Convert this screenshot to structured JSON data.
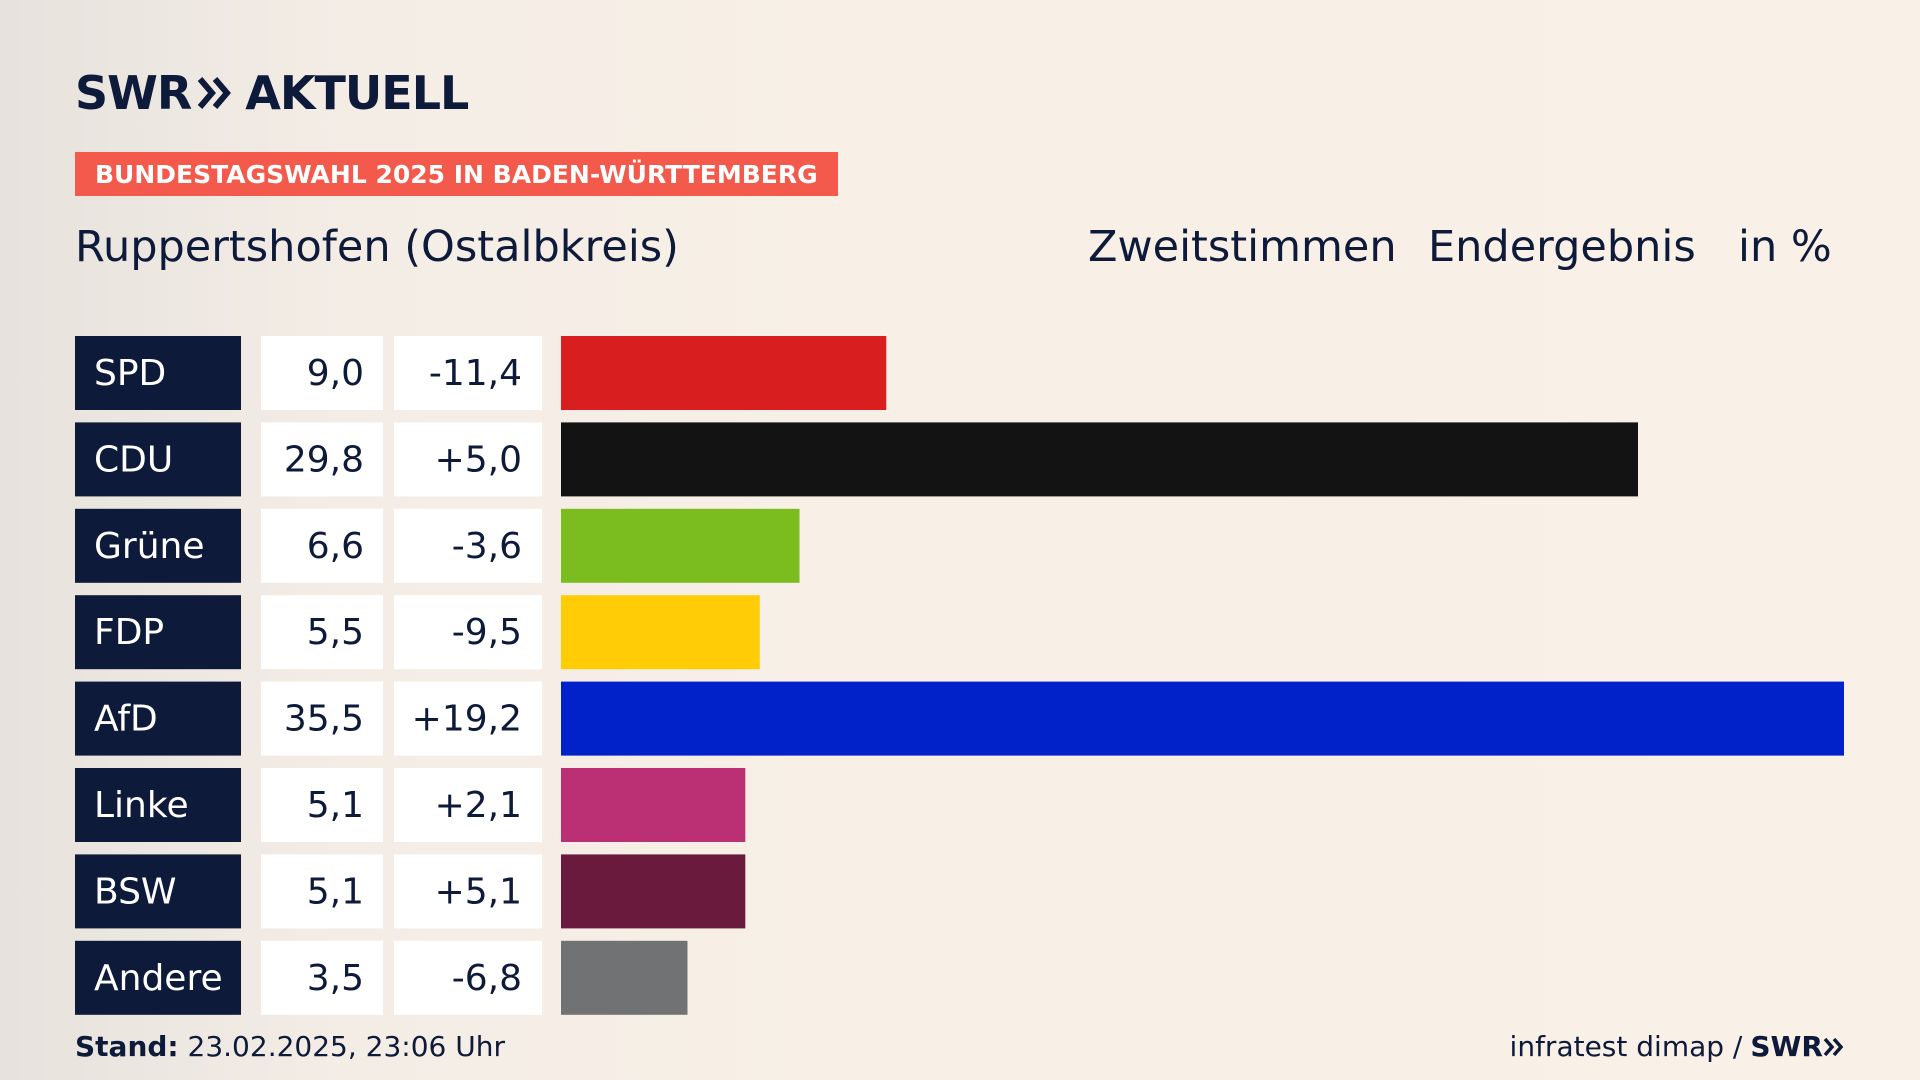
{
  "header": {
    "logo_left": "SWR",
    "logo_right": "AKTUELL",
    "tag": "BUNDESTAGSWAHL 2025 IN BADEN-WÜRTTEMBERG",
    "place": "Ruppertshofen (Ostalbkreis)",
    "vote_type": "Zweitstimmen",
    "result_type": "Endergebnis",
    "unit": "in %"
  },
  "colors": {
    "navy": "#0e1a3a",
    "tag_bg": "#f45a4b"
  },
  "chart_data": {
    "type": "bar",
    "orientation": "horizontal",
    "categories": [
      "SPD",
      "CDU",
      "Grüne",
      "FDP",
      "AfD",
      "Linke",
      "BSW",
      "Andere"
    ],
    "values": [
      9.0,
      29.8,
      6.6,
      5.5,
      35.5,
      5.1,
      5.1,
      3.5
    ],
    "value_labels": [
      "9,0",
      "29,8",
      "6,6",
      "5,5",
      "35,5",
      "5,1",
      "5,1",
      "3,5"
    ],
    "changes": [
      -11.4,
      5.0,
      -3.6,
      -9.5,
      19.2,
      2.1,
      5.1,
      -6.8
    ],
    "change_labels": [
      "-11,4",
      "+5,0",
      "-3,6",
      "-9,5",
      "+19,2",
      "+2,1",
      "+5,1",
      "-6,8"
    ],
    "bar_colors": [
      "#d81e1e",
      "#131313",
      "#7bbd1e",
      "#ffcc06",
      "#0022c8",
      "#bb3074",
      "#6a1a3c",
      "#717274"
    ],
    "xlim": [
      0,
      35.5
    ]
  },
  "footer": {
    "stand_label": "Stand:",
    "stand_value": "23.02.2025, 23:06 Uhr",
    "source": "infratest dimap /",
    "source_logo": "SWR"
  }
}
